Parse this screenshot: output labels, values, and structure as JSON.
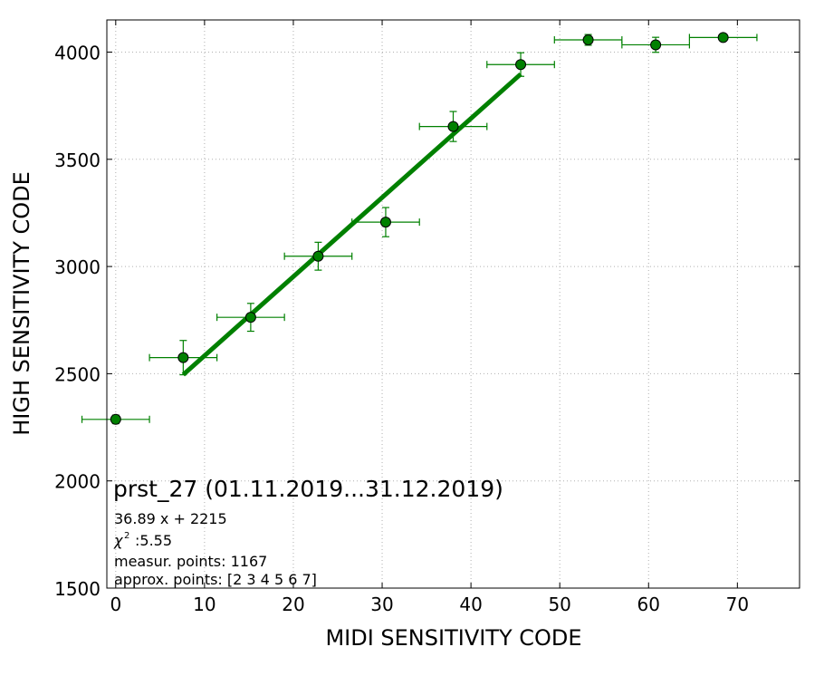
{
  "chart_data": {
    "type": "scatter",
    "xlabel": "MIDI SENSITIVITY CODE",
    "ylabel": "HIGH SENSITIVITY CODE",
    "xlim": [
      -1,
      77
    ],
    "ylim": [
      1500,
      4150
    ],
    "xticks": [
      0,
      10,
      20,
      30,
      40,
      50,
      60,
      70
    ],
    "yticks": [
      1500,
      2000,
      2500,
      3000,
      3500,
      4000
    ],
    "grid": true,
    "colors": {
      "points": "#008000",
      "fit": "#008000",
      "point_edge": "#000000"
    },
    "points": [
      {
        "x": 0.0,
        "y": 2287,
        "xerr": 3.8,
        "yerr": 20
      },
      {
        "x": 7.6,
        "y": 2575,
        "xerr": 3.8,
        "yerr": 80
      },
      {
        "x": 15.2,
        "y": 2763,
        "xerr": 3.8,
        "yerr": 65
      },
      {
        "x": 22.8,
        "y": 3048,
        "xerr": 3.8,
        "yerr": 65
      },
      {
        "x": 30.4,
        "y": 3207,
        "xerr": 3.8,
        "yerr": 68
      },
      {
        "x": 38.0,
        "y": 3653,
        "xerr": 3.8,
        "yerr": 70
      },
      {
        "x": 45.6,
        "y": 3942,
        "xerr": 3.8,
        "yerr": 55
      },
      {
        "x": 53.2,
        "y": 4057,
        "xerr": 3.8,
        "yerr": 25
      },
      {
        "x": 60.8,
        "y": 4034,
        "xerr": 3.8,
        "yerr": 35
      },
      {
        "x": 68.4,
        "y": 4068,
        "xerr": 3.8,
        "yerr": 15
      }
    ],
    "fit": {
      "slope": 36.89,
      "intercept": 2215,
      "x_range": [
        7.6,
        45.6
      ]
    },
    "annotations": {
      "title": "prst_27 (01.11.2019...31.12.2019)",
      "equation": "36.89 x + 2215",
      "chi2": ":5.55",
      "measur": "measur. points: 1167",
      "approx": "approx. points: [2 3 4 5 6 7]"
    }
  }
}
